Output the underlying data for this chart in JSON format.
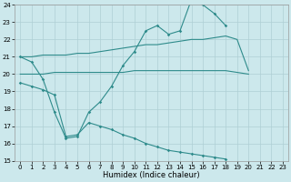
{
  "xlabel": "Humidex (Indice chaleur)",
  "bg_color": "#cce8ec",
  "grid_color": "#aecfd4",
  "line_color": "#2e8b8b",
  "xlim": [
    -0.5,
    23.5
  ],
  "ylim": [
    15,
    24
  ],
  "yticks": [
    15,
    16,
    17,
    18,
    19,
    20,
    21,
    22,
    23,
    24
  ],
  "xticks": [
    0,
    1,
    2,
    3,
    4,
    5,
    6,
    7,
    8,
    9,
    10,
    11,
    12,
    13,
    14,
    15,
    16,
    17,
    18,
    19,
    20,
    21,
    22,
    23
  ],
  "lines": [
    {
      "x": [
        0,
        1,
        2,
        3,
        4,
        5,
        6,
        7,
        8,
        9,
        10,
        11,
        12,
        13,
        14,
        15,
        16,
        17,
        18,
        19,
        20,
        21,
        22,
        23
      ],
      "y": [
        21.0,
        20.7,
        19.7,
        17.8,
        16.3,
        16.4,
        17.8,
        18.4,
        19.3,
        20.5,
        21.3,
        22.5,
        22.8,
        22.3,
        22.5,
        24.3,
        24.0,
        23.5,
        22.8,
        null,
        null,
        null,
        null,
        null
      ],
      "has_marker": true
    },
    {
      "x": [
        0,
        1,
        2,
        3,
        4,
        5,
        6,
        7,
        8,
        9,
        10,
        11,
        12,
        13,
        14,
        15,
        16,
        17,
        18,
        19,
        20
      ],
      "y": [
        21.0,
        21.0,
        21.1,
        21.1,
        21.1,
        21.2,
        21.2,
        21.3,
        21.4,
        21.5,
        21.6,
        21.7,
        21.7,
        21.8,
        21.9,
        22.0,
        22.0,
        22.1,
        22.2,
        22.0,
        20.2
      ],
      "has_marker": false
    },
    {
      "x": [
        0,
        1,
        2,
        3,
        4,
        5,
        6,
        7,
        8,
        9,
        10,
        11,
        12,
        13,
        14,
        15,
        16,
        17,
        18,
        19,
        20
      ],
      "y": [
        20.0,
        20.0,
        20.0,
        20.1,
        20.1,
        20.1,
        20.1,
        20.1,
        20.1,
        20.1,
        20.2,
        20.2,
        20.2,
        20.2,
        20.2,
        20.2,
        20.2,
        20.2,
        20.2,
        20.1,
        20.0
      ],
      "has_marker": false
    },
    {
      "x": [
        0,
        1,
        2,
        3,
        4,
        5,
        6,
        7,
        8,
        9,
        10,
        11,
        12,
        13,
        14,
        15,
        16,
        17,
        18,
        19,
        20,
        21,
        22,
        23
      ],
      "y": [
        19.5,
        19.3,
        19.1,
        18.8,
        16.4,
        16.5,
        17.2,
        17.0,
        16.8,
        16.5,
        16.3,
        16.0,
        15.8,
        15.6,
        15.5,
        15.4,
        15.3,
        15.2,
        15.1,
        null,
        null,
        null,
        null,
        null
      ],
      "has_marker": true
    }
  ]
}
